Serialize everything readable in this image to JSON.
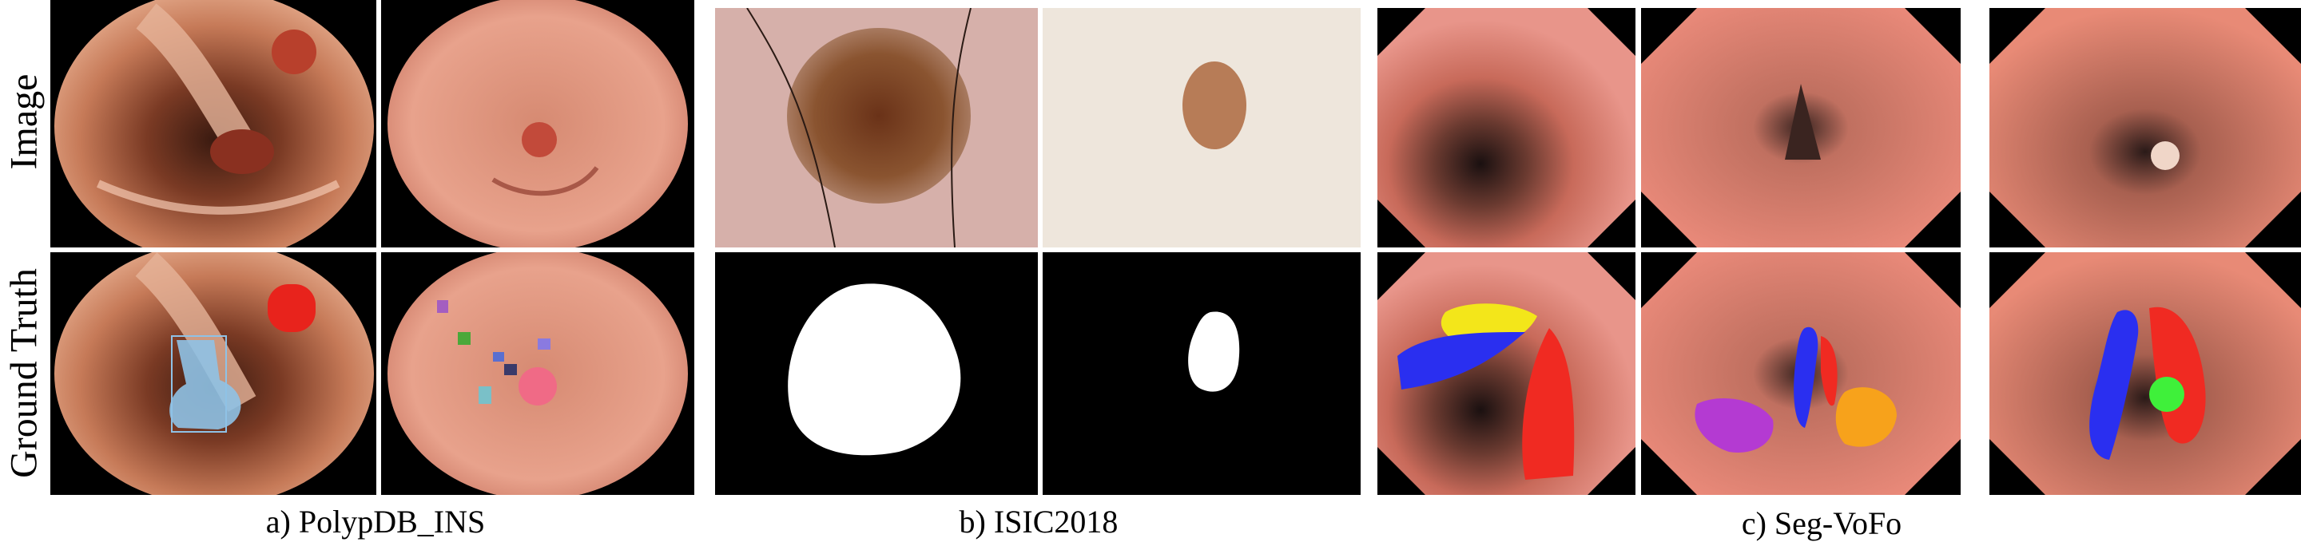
{
  "row_labels": {
    "image": "Image",
    "ground_truth": "Ground Truth"
  },
  "captions": {
    "polypdb": "a) PolypDB_INS",
    "isic": "b) ISIC2018",
    "segvofo": "c) Seg-VoFo"
  },
  "colors": {
    "mask_white": "#ffffff",
    "black": "#000000",
    "seg_yellow": "#f3e61a",
    "seg_blue": "#2a2ff0",
    "seg_red": "#f02a22",
    "seg_purple": "#b43ad2",
    "seg_orange": "#f7a21b",
    "seg_green": "#3ff03a",
    "polyp_red": "#e8231c",
    "polyp_lightblue": "#8fc2e6",
    "polyp_pink": "#f06a86"
  }
}
